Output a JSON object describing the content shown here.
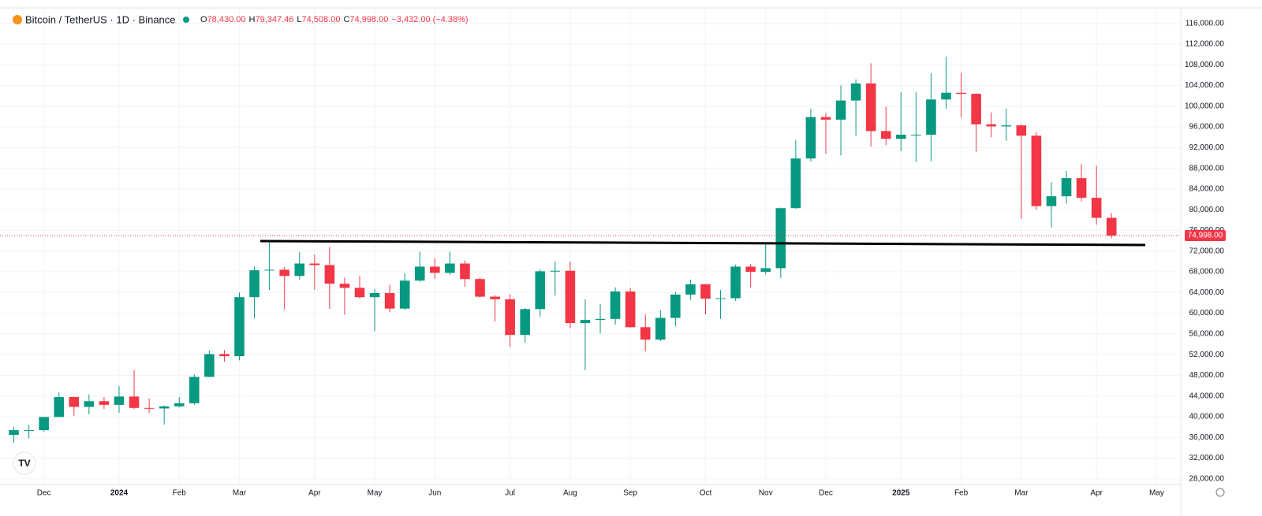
{
  "chart_data": {
    "type": "candlestick",
    "title": "Bitcoin / TetherUS · 1D · Binance",
    "ohlc_header": [
      {
        "key": "O",
        "text": "78,430.00"
      },
      {
        "key": "H",
        "text": "79,347.46"
      },
      {
        "key": "L",
        "text": "74,508.00"
      },
      {
        "key": "C",
        "text": "74,998.00"
      },
      {
        "key": "",
        "text": "−3,432.00 (−4.38%)"
      }
    ],
    "last_price": {
      "value": 74998,
      "label": "74,998.00"
    },
    "up_color": "#089981",
    "down_color": "#f23645",
    "grid": true,
    "categories": [
      null,
      null,
      "Dec",
      null,
      null,
      null,
      null,
      "2024",
      null,
      null,
      null,
      "Feb",
      null,
      null,
      null,
      "Mar",
      null,
      null,
      null,
      null,
      "Apr",
      null,
      null,
      null,
      "May",
      null,
      null,
      null,
      "Jun",
      null,
      null,
      null,
      null,
      "Jul",
      null,
      null,
      null,
      "Aug",
      null,
      null,
      null,
      "Sep",
      null,
      null,
      null,
      null,
      "Oct",
      null,
      null,
      null,
      "Nov",
      null,
      null,
      null,
      "Dec",
      null,
      null,
      null,
      null,
      "2025",
      null,
      null,
      null,
      "Feb",
      null,
      null,
      null,
      "Mar",
      null,
      null,
      null,
      null,
      "Apr",
      null,
      null,
      null,
      "May",
      null
    ],
    "open": [
      36500,
      37400,
      37400,
      39950,
      43800,
      41900,
      43000,
      42300,
      43900,
      41700,
      41600,
      42000,
      42600,
      47700,
      52100,
      51700,
      63100,
      68300,
      68400,
      67200,
      69600,
      69300,
      65700,
      64900,
      63100,
      63900,
      60900,
      66300,
      69000,
      67800,
      69600,
      66600,
      63200,
      62700,
      55800,
      60800,
      68100,
      68200,
      58100,
      58700,
      58900,
      64200,
      57300,
      54900,
      59100,
      63600,
      65600,
      62800,
      62900,
      69000,
      68000,
      68700,
      80300,
      89900,
      97900,
      97400,
      101100,
      104400,
      95200,
      93700,
      94500,
      94500,
      101300,
      102600,
      102400,
      96500,
      96100,
      96300,
      94300,
      80700,
      82600,
      86100,
      82300,
      78430,
      null,
      null,
      null,
      null
    ],
    "high": [
      38000,
      38400,
      40000,
      44700,
      43900,
      44300,
      43800,
      45900,
      49000,
      43600,
      42200,
      43800,
      48200,
      52800,
      52900,
      64000,
      69000,
      73800,
      68900,
      71800,
      71300,
      72800,
      66900,
      67200,
      64700,
      65500,
      67700,
      71900,
      70600,
      71900,
      70200,
      66900,
      63500,
      63700,
      61000,
      68500,
      70000,
      70000,
      62700,
      61800,
      65000,
      64900,
      59800,
      60600,
      64100,
      66500,
      65600,
      64500,
      69400,
      69500,
      73600,
      80400,
      93400,
      99500,
      98700,
      104000,
      105200,
      108300,
      99900,
      102700,
      102700,
      106400,
      109600,
      106500,
      102500,
      98800,
      99500,
      96500,
      95000,
      85300,
      87500,
      88800,
      88500,
      79347.46,
      null,
      null,
      null,
      null
    ],
    "low": [
      35000,
      35800,
      37100,
      39900,
      40200,
      40500,
      41500,
      40750,
      41500,
      40700,
      38500,
      41800,
      42300,
      47600,
      50600,
      50900,
      59000,
      64500,
      60800,
      66500,
      64500,
      60800,
      59700,
      62800,
      56500,
      60200,
      60600,
      66100,
      66600,
      67400,
      65100,
      63000,
      58400,
      53500,
      54300,
      59300,
      63400,
      57100,
      49000,
      56100,
      57800,
      57200,
      52600,
      54600,
      57500,
      62600,
      59800,
      58900,
      62400,
      65000,
      67500,
      66800,
      80200,
      89300,
      90800,
      90500,
      94300,
      92200,
      92500,
      91300,
      89200,
      89300,
      99500,
      97800,
      91200,
      94000,
      93300,
      78200,
      80000,
      76600,
      81200,
      81600,
      77100,
      74508,
      null,
      null,
      null,
      null
    ],
    "close": [
      37400,
      37400,
      39950,
      43800,
      41900,
      43000,
      42300,
      43900,
      41700,
      41600,
      42000,
      42600,
      47700,
      52100,
      51700,
      63100,
      68300,
      68400,
      67200,
      69600,
      69300,
      65700,
      64900,
      63100,
      63900,
      60900,
      66300,
      69000,
      67800,
      69600,
      66600,
      63200,
      62700,
      55800,
      60800,
      68100,
      68200,
      58100,
      58700,
      58900,
      64200,
      57300,
      54900,
      59100,
      63600,
      65600,
      62800,
      62900,
      69000,
      68000,
      68700,
      80300,
      89900,
      97900,
      97400,
      101100,
      104400,
      95200,
      93700,
      94500,
      94500,
      101300,
      102600,
      102400,
      96500,
      96100,
      96300,
      94300,
      80700,
      82600,
      86100,
      82300,
      78430,
      74998,
      null,
      null,
      null,
      null
    ],
    "ylim": [
      26600,
      119000
    ],
    "yticks": [
      {
        "value": 28000,
        "label": "28,000.00"
      },
      {
        "value": 32000,
        "label": "32,000.00"
      },
      {
        "value": 36000,
        "label": "36,000.00"
      },
      {
        "value": 40000,
        "label": "40,000.00"
      },
      {
        "value": 44000,
        "label": "44,000.00"
      },
      {
        "value": 48000,
        "label": "48,000.00"
      },
      {
        "value": 52000,
        "label": "52,000.00"
      },
      {
        "value": 56000,
        "label": "56,000.00"
      },
      {
        "value": 60000,
        "label": "60,000.00"
      },
      {
        "value": 64000,
        "label": "64,000.00"
      },
      {
        "value": 68000,
        "label": "68,000.00"
      },
      {
        "value": 72000,
        "label": "72,000.00"
      },
      {
        "value": 76000,
        "label": "76,000.00"
      },
      {
        "value": 80000,
        "label": "80,000.00"
      },
      {
        "value": 84000,
        "label": "84,000.00"
      },
      {
        "value": 88000,
        "label": "88,000.00"
      },
      {
        "value": 92000,
        "label": "92,000.00"
      },
      {
        "value": 96000,
        "label": "96,000.00"
      },
      {
        "value": 100000,
        "label": "100,000.00"
      },
      {
        "value": 104000,
        "label": "104,000.00"
      },
      {
        "value": 108000,
        "label": "108,000.00"
      },
      {
        "value": 112000,
        "label": "112,000.00"
      },
      {
        "value": 116000,
        "label": "116,000.00"
      }
    ]
  }
}
